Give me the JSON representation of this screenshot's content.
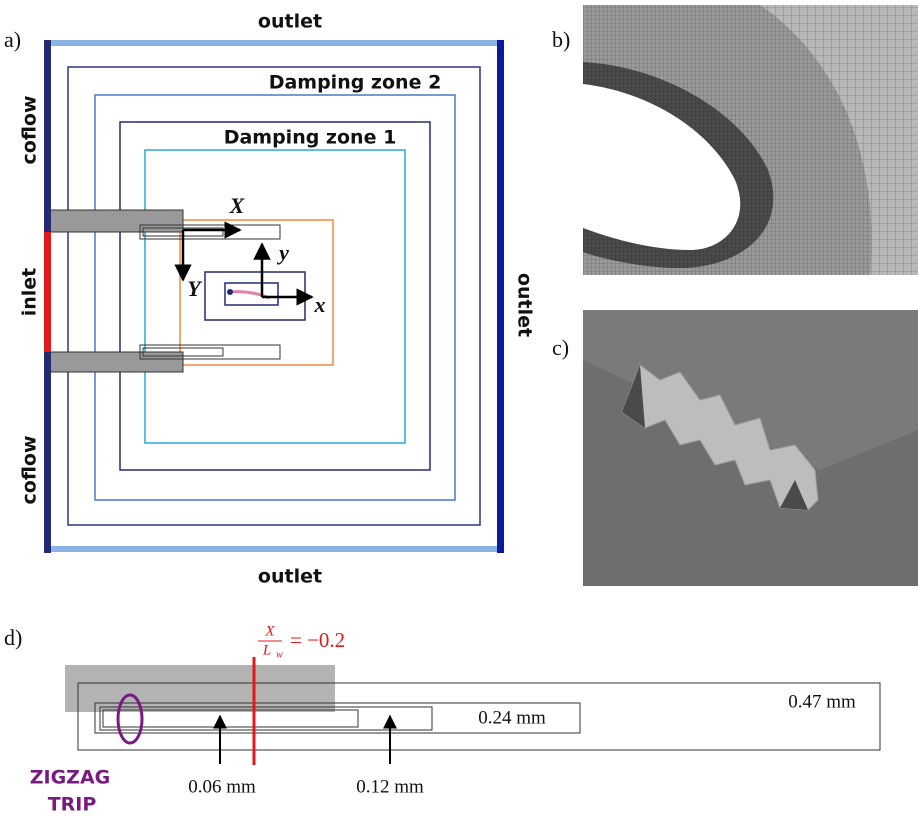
{
  "panel_labels": [
    "a)",
    "b)",
    "c)",
    "d)"
  ],
  "panel_a": {
    "outlet_top": "outlet",
    "outlet_bottom": "outlet",
    "outlet_right": "outlet",
    "coflow_top": "coflow",
    "coflow_bottom": "coflow",
    "inlet": "inlet",
    "damping_zone_2": "Damping zone 2",
    "damping_zone_1": "Damping zone 1",
    "axis_X": "X",
    "axis_Y": "Y",
    "axis_x": "x",
    "axis_y": "y"
  },
  "panel_d": {
    "formula": {
      "numerator": "X",
      "denominator": "L",
      "denominator_subscript": "w",
      "rhs": "= −0.2"
    },
    "dim_047": "0.47 mm",
    "dim_024": "0.24 mm",
    "dim_006": "0.06 mm",
    "dim_012": "0.12 mm",
    "trip_line1": "ZIGZAG",
    "trip_line2": "TRIP"
  }
}
